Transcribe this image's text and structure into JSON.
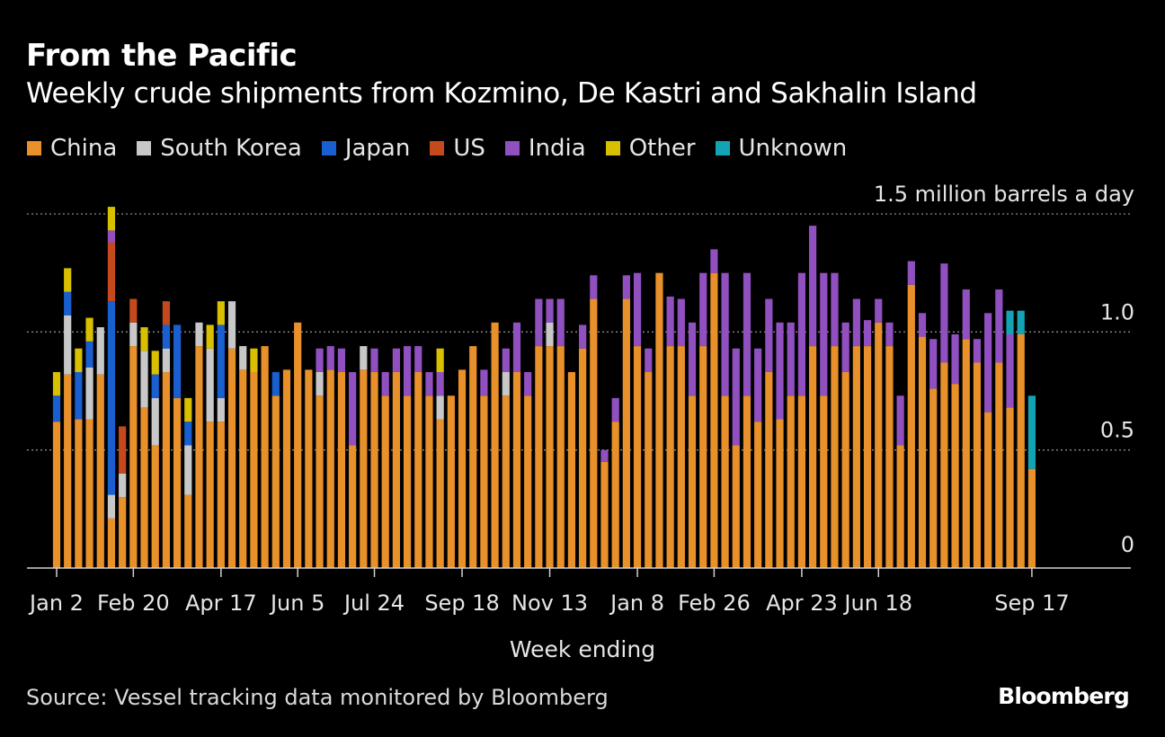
{
  "title": "From the Pacific",
  "subtitle": "Weekly crude shipments from Kozmino, De Kastri and Sakhalin Island",
  "source": "Source: Vessel tracking data monitored by Bloomberg",
  "brand": "Bloomberg",
  "legend": [
    {
      "name": "China",
      "color": "#e8902a"
    },
    {
      "name": "South Korea",
      "color": "#c8c8c8"
    },
    {
      "name": "Japan",
      "color": "#1a5fd0"
    },
    {
      "name": "US",
      "color": "#c44a1e"
    },
    {
      "name": "India",
      "color": "#9050c0"
    },
    {
      "name": "Other",
      "color": "#d8c000"
    },
    {
      "name": "Unknown",
      "color": "#12a4b4"
    }
  ],
  "chart_data": {
    "type": "bar",
    "stacked": true,
    "xlabel": "Week ending",
    "ylabel": "1.5 million barrels a day",
    "ylim": [
      0,
      1.5
    ],
    "yticks": [
      {
        "value": 0,
        "label": "0"
      },
      {
        "value": 0.5,
        "label": "0.5"
      },
      {
        "value": 1.0,
        "label": "1.0"
      },
      {
        "value": 1.5,
        "label": "1.5"
      }
    ],
    "xticks": [
      {
        "index": 0,
        "label": "Jan 2"
      },
      {
        "index": 7,
        "label": "Feb 20"
      },
      {
        "index": 15,
        "label": "Apr 17"
      },
      {
        "index": 22,
        "label": "Jun 5"
      },
      {
        "index": 29,
        "label": "Jul 24"
      },
      {
        "index": 37,
        "label": "Sep 18"
      },
      {
        "index": 45,
        "label": "Nov 13"
      },
      {
        "index": 53,
        "label": "Jan 8"
      },
      {
        "index": 60,
        "label": "Feb 26"
      },
      {
        "index": 68,
        "label": "Apr 23"
      },
      {
        "index": 75,
        "label": "Jun 18"
      },
      {
        "index": 89,
        "label": "Sep 17"
      }
    ],
    "grid": "dotted horizontal",
    "legend_position": "top",
    "series_order": [
      "China",
      "South Korea",
      "Japan",
      "US",
      "India",
      "Other",
      "Unknown"
    ],
    "colors": {
      "China": "#e8902a",
      "South Korea": "#c8c8c8",
      "Japan": "#1a5fd0",
      "US": "#c44a1e",
      "India": "#9050c0",
      "Other": "#d8c000",
      "Unknown": "#12a4b4"
    },
    "bars": [
      {
        "China": 0.62,
        "Japan": 0.11,
        "Other": 0.1
      },
      {
        "China": 0.82,
        "South Korea": 0.25,
        "Japan": 0.1,
        "Other": 0.1
      },
      {
        "China": 0.63,
        "Japan": 0.2,
        "Other": 0.1
      },
      {
        "China": 0.63,
        "South Korea": 0.22,
        "Japan": 0.11,
        "Other": 0.1
      },
      {
        "China": 0.82,
        "South Korea": 0.2
      },
      {
        "China": 0.21,
        "South Korea": 0.1,
        "Japan": 0.82,
        "US": 0.25,
        "India": 0.05,
        "Other": 0.1
      },
      {
        "China": 0.3,
        "South Korea": 0.1,
        "US": 0.2
      },
      {
        "China": 0.94,
        "South Korea": 0.1,
        "US": 0.1
      },
      {
        "China": 0.68,
        "South Korea": 0.24,
        "Other": 0.1
      },
      {
        "China": 0.52,
        "South Korea": 0.2,
        "Japan": 0.1,
        "Other": 0.1
      },
      {
        "China": 0.83,
        "South Korea": 0.1,
        "Japan": 0.1,
        "US": 0.1
      },
      {
        "China": 0.72,
        "Japan": 0.31
      },
      {
        "China": 0.31,
        "South Korea": 0.21,
        "Japan": 0.1,
        "Other": 0.1
      },
      {
        "China": 0.94,
        "South Korea": 0.1
      },
      {
        "China": 0.62,
        "South Korea": 0.31,
        "Other": 0.1
      },
      {
        "China": 0.62,
        "South Korea": 0.1,
        "Japan": 0.31,
        "Other": 0.1
      },
      {
        "China": 0.93,
        "South Korea": 0.2
      },
      {
        "China": 0.84,
        "South Korea": 0.1
      },
      {
        "China": 0.83,
        "Other": 0.1
      },
      {
        "China": 0.94
      },
      {
        "China": 0.73,
        "Japan": 0.1
      },
      {
        "China": 0.84
      },
      {
        "China": 1.04
      },
      {
        "China": 0.84
      },
      {
        "China": 0.73,
        "South Korea": 0.1,
        "India": 0.1
      },
      {
        "China": 0.84,
        "India": 0.1
      },
      {
        "China": 0.83,
        "India": 0.1
      },
      {
        "China": 0.52,
        "India": 0.31
      },
      {
        "China": 0.84,
        "South Korea": 0.1
      },
      {
        "China": 0.83,
        "India": 0.1
      },
      {
        "China": 0.73,
        "India": 0.1
      },
      {
        "China": 0.83,
        "India": 0.1
      },
      {
        "China": 0.73,
        "India": 0.21
      },
      {
        "China": 0.83,
        "India": 0.11
      },
      {
        "China": 0.73,
        "India": 0.1
      },
      {
        "China": 0.63,
        "South Korea": 0.1,
        "India": 0.1,
        "Other": 0.1
      },
      {
        "China": 0.73
      },
      {
        "China": 0.84
      },
      {
        "China": 0.94
      },
      {
        "China": 0.73,
        "India": 0.11
      },
      {
        "China": 1.04
      },
      {
        "China": 0.73,
        "South Korea": 0.1,
        "India": 0.1
      },
      {
        "China": 0.83,
        "India": 0.21
      },
      {
        "China": 0.73,
        "India": 0.1
      },
      {
        "China": 0.94,
        "India": 0.2
      },
      {
        "China": 0.94,
        "South Korea": 0.1,
        "India": 0.1
      },
      {
        "China": 0.94,
        "India": 0.2
      },
      {
        "China": 0.83
      },
      {
        "China": 0.93,
        "India": 0.1
      },
      {
        "China": 1.14,
        "India": 0.1
      },
      {
        "China": 0.45,
        "India": 0.05
      },
      {
        "China": 0.62,
        "India": 0.1
      },
      {
        "China": 1.14,
        "India": 0.1
      },
      {
        "China": 0.94,
        "India": 0.31
      },
      {
        "China": 0.83,
        "India": 0.1
      },
      {
        "China": 1.25
      },
      {
        "China": 0.94,
        "India": 0.21
      },
      {
        "China": 0.94,
        "India": 0.2
      },
      {
        "China": 0.73,
        "India": 0.31
      },
      {
        "China": 0.94,
        "India": 0.31
      },
      {
        "China": 1.25,
        "India": 0.1
      },
      {
        "China": 0.73,
        "India": 0.52
      },
      {
        "China": 0.52,
        "India": 0.41
      },
      {
        "China": 0.73,
        "India": 0.52
      },
      {
        "China": 0.62,
        "India": 0.31
      },
      {
        "China": 0.83,
        "India": 0.31
      },
      {
        "China": 0.63,
        "India": 0.41
      },
      {
        "China": 0.73,
        "India": 0.31
      },
      {
        "China": 0.73,
        "India": 0.52
      },
      {
        "China": 0.94,
        "India": 0.51
      },
      {
        "China": 0.73,
        "India": 0.52
      },
      {
        "China": 0.94,
        "India": 0.31
      },
      {
        "China": 0.83,
        "India": 0.21
      },
      {
        "China": 0.94,
        "India": 0.2
      },
      {
        "China": 0.94,
        "India": 0.11
      },
      {
        "China": 1.04,
        "India": 0.1
      },
      {
        "China": 0.94,
        "India": 0.1
      },
      {
        "China": 0.52,
        "India": 0.21
      },
      {
        "China": 1.2,
        "India": 0.1
      },
      {
        "China": 0.98,
        "India": 0.1
      },
      {
        "China": 0.76,
        "India": 0.21
      },
      {
        "China": 0.87,
        "India": 0.42
      },
      {
        "China": 0.78,
        "India": 0.21
      },
      {
        "China": 0.97,
        "India": 0.21
      },
      {
        "China": 0.87,
        "India": 0.1
      },
      {
        "China": 0.66,
        "India": 0.42
      },
      {
        "China": 0.87,
        "India": 0.31
      },
      {
        "China": 0.68,
        "India": 0.31,
        "Unknown": 0.1
      },
      {
        "China": 0.99,
        "Unknown": 0.1
      },
      {
        "China": 0.42,
        "Unknown": 0.31
      }
    ]
  }
}
